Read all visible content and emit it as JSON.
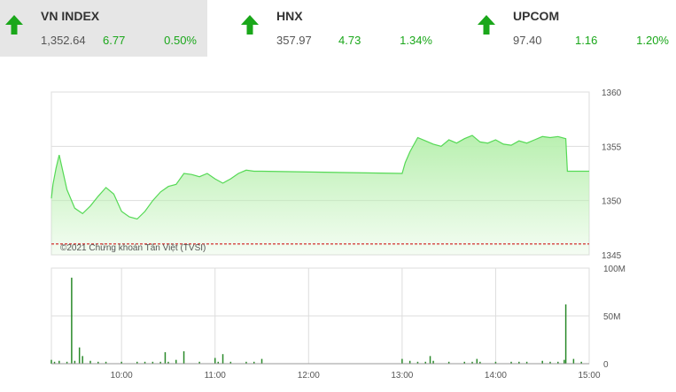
{
  "tickers": [
    {
      "name": "VN INDEX",
      "price": "1,352.64",
      "change": "6.77",
      "pct": "0.50%",
      "direction": "up",
      "active": true
    },
    {
      "name": "HNX",
      "price": "357.97",
      "change": "4.73",
      "pct": "1.34%",
      "direction": "up",
      "active": false
    },
    {
      "name": "UPCOM",
      "price": "97.40",
      "change": "1.16",
      "pct": "1.20%",
      "direction": "up",
      "active": false
    }
  ],
  "colors": {
    "up": "#1aa71a",
    "area_line": "#55d955",
    "area_fill": "#b9f0b0",
    "reference_line": "#cc0000",
    "volume_bar": "#2a8a2a",
    "grid": "#dddddd"
  },
  "chart_data": [
    {
      "type": "area",
      "title": "",
      "watermark": "©2021 Chứng khoán Tân Việt (TVSI)",
      "reference": 1346,
      "ylim": [
        1345,
        1360
      ],
      "y_ticks": [
        "1360",
        "1355",
        "1350",
        "1345"
      ],
      "y_tick_values": [
        1360,
        1355,
        1350,
        1345
      ],
      "grid": true,
      "series": [
        {
          "x": [
            "09:15",
            "09:16",
            "09:18",
            "09:20",
            "09:25",
            "09:30",
            "09:35",
            "09:40",
            "09:45",
            "09:50",
            "09:55",
            "10:00",
            "10:05",
            "10:10",
            "10:15",
            "10:20",
            "10:25",
            "10:30",
            "10:35",
            "10:40",
            "10:45",
            "10:50",
            "10:55",
            "11:00",
            "11:05",
            "11:10",
            "11:15",
            "11:20",
            "11:25",
            "11:30",
            "13:00",
            "13:02",
            "13:05",
            "13:10",
            "13:15",
            "13:20",
            "13:25",
            "13:30",
            "13:35",
            "13:40",
            "13:45",
            "13:50",
            "13:55",
            "14:00",
            "14:05",
            "14:10",
            "14:15",
            "14:20",
            "14:25",
            "14:30",
            "14:35",
            "14:40",
            "14:45",
            "14:46",
            "15:00"
          ],
          "values": [
            1350.2,
            1351.5,
            1353.0,
            1354.2,
            1351.0,
            1349.3,
            1348.8,
            1349.5,
            1350.4,
            1351.2,
            1350.6,
            1349.0,
            1348.5,
            1348.3,
            1349.0,
            1350.0,
            1350.8,
            1351.3,
            1351.5,
            1352.5,
            1352.4,
            1352.2,
            1352.5,
            1352.0,
            1351.6,
            1352.0,
            1352.5,
            1352.8,
            1352.7,
            1352.7,
            1352.5,
            1353.5,
            1354.5,
            1355.8,
            1355.5,
            1355.2,
            1355.0,
            1355.6,
            1355.3,
            1355.7,
            1356.0,
            1355.4,
            1355.3,
            1355.6,
            1355.2,
            1355.1,
            1355.5,
            1355.3,
            1355.6,
            1355.9,
            1355.8,
            1355.9,
            1355.7,
            1352.7,
            1352.7
          ]
        }
      ]
    },
    {
      "type": "bar",
      "title": "",
      "ylim": [
        0,
        100
      ],
      "y_ticks": [
        "100M",
        "50M",
        "0"
      ],
      "y_tick_values": [
        100,
        50,
        0
      ],
      "x_ticks": [
        "10:00",
        "11:00",
        "12:00",
        "13:00",
        "14:00",
        "15:00"
      ],
      "x_tick_values": [
        "10:00",
        "11:00",
        "12:00",
        "13:00",
        "14:00",
        "15:00"
      ],
      "series": [
        {
          "x": [
            "09:15",
            "09:17",
            "09:20",
            "09:25",
            "09:28",
            "09:30",
            "09:33",
            "09:35",
            "09:40",
            "09:45",
            "09:50",
            "10:00",
            "10:10",
            "10:15",
            "10:20",
            "10:25",
            "10:28",
            "10:30",
            "10:35",
            "10:40",
            "10:50",
            "11:00",
            "11:02",
            "11:05",
            "11:10",
            "11:20",
            "11:25",
            "11:30",
            "13:00",
            "13:05",
            "13:10",
            "13:15",
            "13:18",
            "13:20",
            "13:30",
            "13:40",
            "13:45",
            "13:48",
            "13:50",
            "14:00",
            "14:10",
            "14:15",
            "14:20",
            "14:30",
            "14:35",
            "14:40",
            "14:44",
            "14:45",
            "14:50",
            "14:55"
          ],
          "values": [
            4,
            2,
            3,
            2,
            90,
            3,
            17,
            8,
            3,
            2,
            2,
            2,
            2,
            2,
            2,
            2,
            12,
            2,
            4,
            13,
            2,
            6,
            2,
            10,
            2,
            2,
            2,
            5,
            5,
            3,
            2,
            2,
            8,
            3,
            2,
            2,
            2,
            5,
            2,
            2,
            2,
            2,
            2,
            3,
            2,
            2,
            4,
            62,
            5,
            2
          ]
        }
      ]
    }
  ]
}
